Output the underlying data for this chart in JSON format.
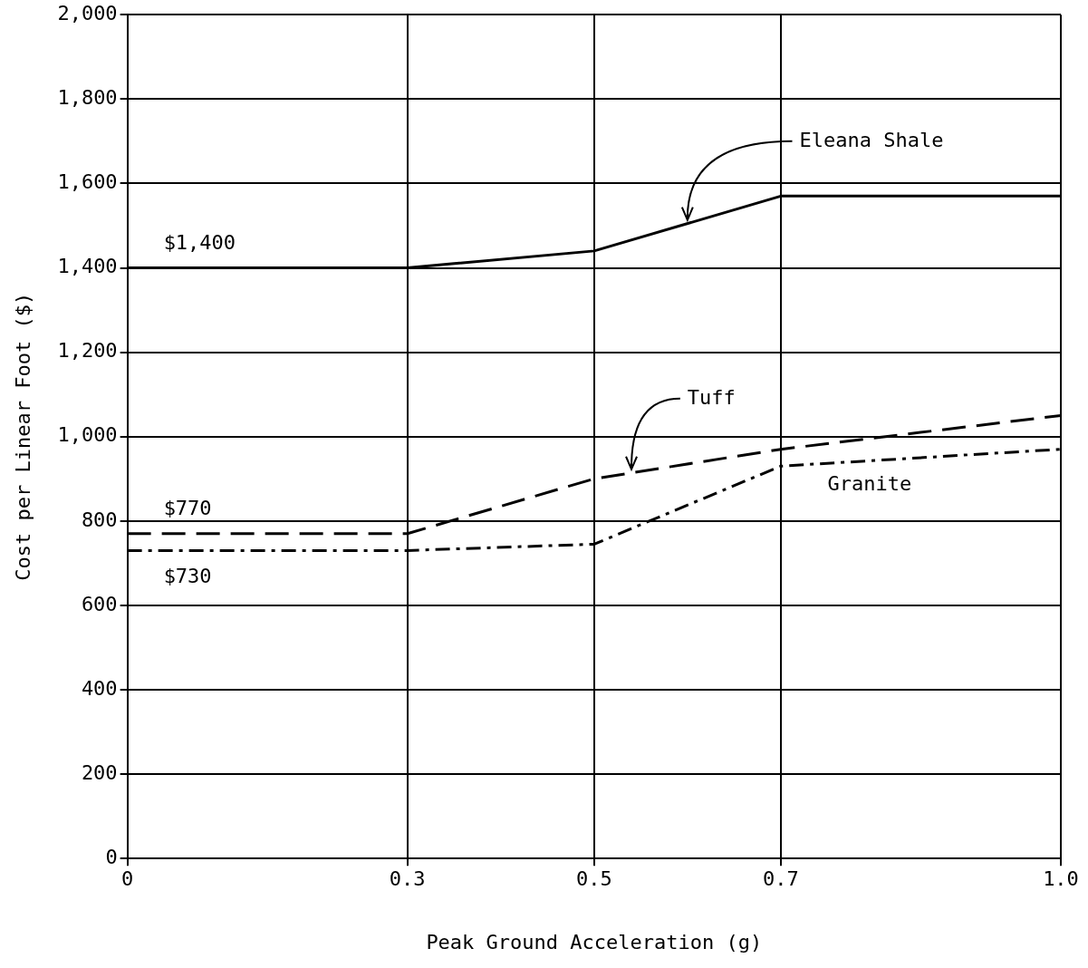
{
  "chart_data": {
    "type": "line",
    "xlabel": "Peak Ground Acceleration (g)",
    "ylabel": "Cost per Linear Foot ($)",
    "xlim": [
      0,
      1
    ],
    "xticks": [
      0,
      0.3,
      0.5,
      0.7,
      {
        "value": 1,
        "label": "1.0"
      }
    ],
    "ylim": [
      0,
      2000
    ],
    "yticks": [
      0,
      200,
      400,
      600,
      800,
      {
        "value": 1000,
        "label": "1,000"
      },
      {
        "value": 1200,
        "label": "1,200"
      },
      {
        "value": 1400,
        "label": "1,400"
      },
      {
        "value": 1600,
        "label": "1,600"
      },
      {
        "value": 1800,
        "label": "1,800"
      },
      {
        "value": 2000,
        "label": "2,000"
      }
    ],
    "grid": true,
    "legend": false,
    "marker": "none",
    "series": [
      {
        "name": "Eleana Shale",
        "color": "#000000",
        "line_style": "solid",
        "x": [
          0,
          0.3,
          0.35,
          0.5,
          0.7,
          1
        ],
        "values": [
          1400,
          1400,
          1410,
          1440,
          1570,
          1570
        ],
        "value_labels": [
          "$1,400",
          null,
          null,
          null,
          null,
          null
        ]
      },
      {
        "name": "Tuff",
        "color": "#000000",
        "line_style": "dashed",
        "x": [
          0,
          0.3,
          0.5,
          0.7,
          1
        ],
        "values": [
          770,
          770,
          900,
          970,
          1050
        ],
        "value_labels": [
          "$770",
          null,
          null,
          null,
          null
        ]
      },
      {
        "name": "Granite",
        "color": "#000000",
        "line_style": "dotted",
        "x": [
          0,
          0.3,
          0.5,
          0.7,
          1
        ],
        "values": [
          730,
          730,
          745,
          930,
          970
        ],
        "value_labels": [
          "$730",
          null,
          null,
          null,
          null
        ]
      }
    ]
  }
}
